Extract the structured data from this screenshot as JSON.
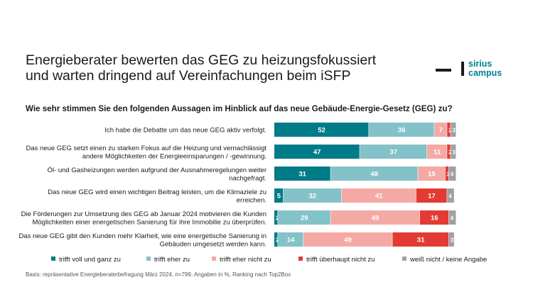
{
  "title": {
    "line1": "Energieberater bewerten das GEG zu heizungsfokussiert",
    "line2": "und warten dringend auf Vereinfachungen beim iSFP"
  },
  "logo": {
    "line1": "sirius",
    "line2": "campus"
  },
  "question": "Wie sehr stimmen Sie den folgenden Aussagen im Hinblick auf das neue Gebäude-Energie-Gesetz (GEG) zu?",
  "footnote": "Basis: repräsentative Energieberaterbefragung März 2024, n=799, Angaben in %, Ranking nach Top2Box",
  "colors": {
    "trifft_voll": "#007b88",
    "trifft_eher": "#83c2c8",
    "eher_nicht": "#f5a9a5",
    "ueberhaupt_nicht": "#e23b33",
    "weiss_nicht": "#a0a0a0"
  },
  "chart_data": {
    "type": "bar",
    "orientation": "horizontal",
    "stacked": true,
    "xlim": [
      0,
      100
    ],
    "categories": [
      [
        "Ich habe die Debatte um das neue GEG aktiv verfolgt."
      ],
      [
        "Das neue GEG setzt einen zu starken Fokus auf die Heizung und vernachlässigt",
        "andere Möglichkeiten der Energieeinsparungen / -gewinnung."
      ],
      [
        "Öl- und Gasheizungen werden aufgrund der Ausnahmeregelungen weiter",
        "nachgefragt."
      ],
      [
        "Das neue GEG wird einen wichtigen Beitrag leisten, um die Klimaziele zu",
        "erreichen."
      ],
      [
        "Die Förderungen zur Umsetzung des GEG ab Januar 2024 motivieren die Kunden",
        "Möglichkeiten einer energetischen Sanierung für ihre Immobilie zu überprüfen."
      ],
      [
        "Das neue GEG gibt den Kunden mehr Klarheit, wie eine energetische Sanierung in",
        "Gebäuden umgesetzt werden kann."
      ]
    ],
    "series": [
      {
        "name": "trifft voll und ganz zu",
        "color": "#007b88",
        "label_color": "#ffffff",
        "values": [
          52,
          47,
          31,
          5,
          2,
          2
        ]
      },
      {
        "name": "trifft eher zu",
        "color": "#83c2c8",
        "label_color": "#ffffff",
        "values": [
          36,
          37,
          48,
          32,
          29,
          14
        ]
      },
      {
        "name": "trifft eher nicht zu",
        "color": "#f5a9a5",
        "label_color": "#ffffff",
        "values": [
          7,
          11,
          15,
          41,
          49,
          49
        ]
      },
      {
        "name": "trifft überhaupt nicht zu",
        "color": "#e23b33",
        "label_color": "#ffffff",
        "values": [
          2,
          2,
          2,
          17,
          16,
          31
        ]
      },
      {
        "name": "weiß nicht / keine Angabe",
        "color": "#a0a0a0",
        "label_color": "#ffffff",
        "values": [
          3,
          3,
          4,
          4,
          4,
          3
        ]
      }
    ],
    "legend_position": "bottom"
  }
}
